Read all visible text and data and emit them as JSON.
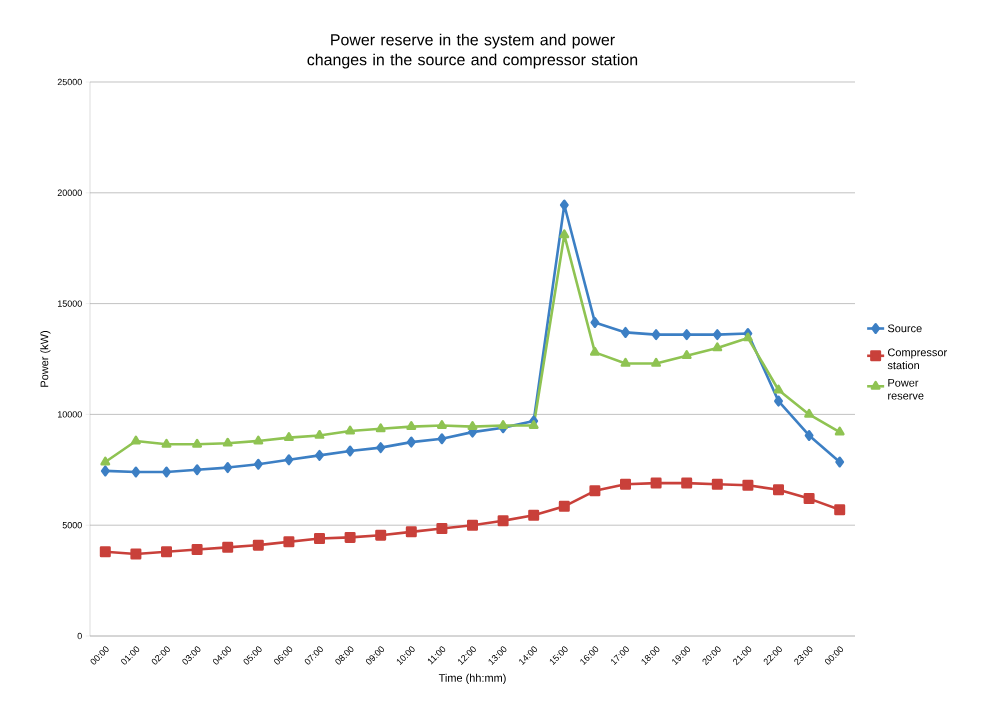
{
  "chart_data": {
    "type": "line",
    "title": "Power reserve in the system and power changes in the source and compressor station",
    "xlabel": "Time (hh:mm)",
    "ylabel": "Power (kW)",
    "categories": [
      "00:00",
      "01:00",
      "02:00",
      "03:00",
      "04:00",
      "05:00",
      "06:00",
      "07:00",
      "08:00",
      "09:00",
      "10:00",
      "11:00",
      "12:00",
      "13:00",
      "14:00",
      "15:00",
      "16:00",
      "17:00",
      "18:00",
      "19:00",
      "20:00",
      "21:00",
      "22:00",
      "23:00",
      "00:00"
    ],
    "series": [
      {
        "name": "Source",
        "color": "#3c7fc4",
        "marker": "diamond",
        "values": [
          7450,
          7400,
          7400,
          7500,
          7600,
          7750,
          7950,
          8150,
          8350,
          8500,
          8750,
          8900,
          9200,
          9400,
          9700,
          19450,
          14150,
          13700,
          13600,
          13600,
          13600,
          13650,
          10600,
          9050,
          7850
        ]
      },
      {
        "name": "Compressor station",
        "color": "#c9403a",
        "marker": "square",
        "values": [
          3800,
          3700,
          3800,
          3900,
          4000,
          4100,
          4250,
          4400,
          4450,
          4550,
          4700,
          4850,
          5000,
          5200,
          5450,
          5850,
          6550,
          6850,
          6900,
          6900,
          6850,
          6800,
          6600,
          6200,
          5700
        ]
      },
      {
        "name": "Power reserve",
        "color": "#8fc352",
        "marker": "triangle",
        "values": [
          7850,
          8800,
          8650,
          8650,
          8700,
          8800,
          8950,
          9050,
          9250,
          9350,
          9450,
          9500,
          9450,
          9500,
          9500,
          18100,
          12800,
          12300,
          12300,
          12650,
          13000,
          13450,
          11100,
          10000,
          9200
        ]
      }
    ],
    "ylim": [
      0,
      25000
    ],
    "yticks": [
      0,
      5000,
      10000,
      15000,
      20000,
      25000
    ],
    "grid": "y",
    "legend": "right",
    "line_style": "solid"
  }
}
